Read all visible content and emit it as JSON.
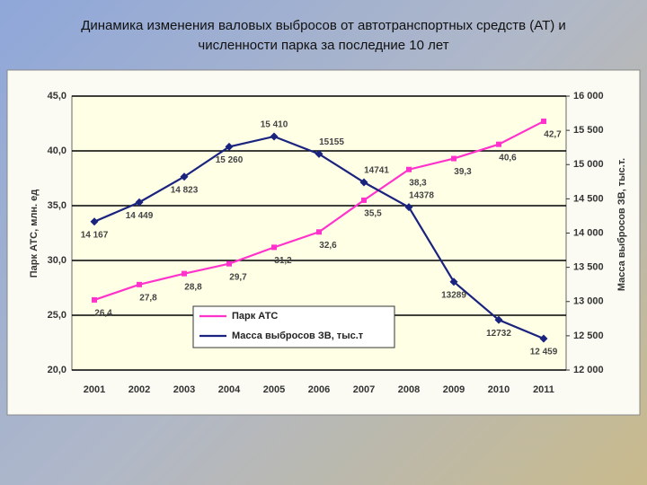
{
  "title_lines": [
    "Динамика изменения валовых выбросов от автотранспортных средств (АТ) и",
    "численности парка за последние 10 лет"
  ],
  "chart_data": {
    "type": "line",
    "categories": [
      "2001",
      "2002",
      "2003",
      "2004",
      "2005",
      "2006",
      "2007",
      "2008",
      "2009",
      "2010",
      "2011"
    ],
    "ylabel": "Парк АТС, млн. ед",
    "y2label": "Масса выбросов ЗВ, тыс.т.",
    "ylim": [
      20,
      45
    ],
    "yticks": [
      {
        "value": 20,
        "label": "20,0"
      },
      {
        "value": 25,
        "label": "25,0"
      },
      {
        "value": 30,
        "label": "30,0"
      },
      {
        "value": 35,
        "label": "35,0"
      },
      {
        "value": 40,
        "label": "40,0"
      },
      {
        "value": 45,
        "label": "45,0"
      }
    ],
    "y2lim": [
      12000,
      16000
    ],
    "y2ticks": [
      {
        "value": 12000,
        "label": "12 000"
      },
      {
        "value": 12500,
        "label": "12 500"
      },
      {
        "value": 13000,
        "label": "13 000"
      },
      {
        "value": 13500,
        "label": "13 500"
      },
      {
        "value": 14000,
        "label": "14 000"
      },
      {
        "value": 14500,
        "label": "14 500"
      },
      {
        "value": 15000,
        "label": "15 000"
      },
      {
        "value": 15500,
        "label": "15 500"
      },
      {
        "value": 16000,
        "label": "16 000"
      }
    ],
    "grid": true,
    "series": [
      {
        "name": "Парк АТС",
        "color": "#ff33cc",
        "marker": "square",
        "values": [
          26.4,
          27.8,
          28.8,
          29.7,
          31.2,
          32.6,
          35.5,
          38.3,
          39.3,
          40.6,
          42.7
        ],
        "value_labels": [
          "26,4",
          "27,8",
          "28,8",
          "29,7",
          "31,2",
          "32,6",
          "35,5",
          "38,3",
          "39,3",
          "40,6",
          "42,7"
        ]
      },
      {
        "name": "Масса выбросов ЗВ, тыс.т",
        "color": "#1a237e",
        "marker": "diamond",
        "axis": "y2",
        "values": [
          14167,
          14449,
          14823,
          15260,
          15410,
          15155,
          14741,
          14378,
          13289,
          12732,
          12459
        ],
        "value_labels": [
          "14 167",
          "14 449",
          "14 823",
          "15 260",
          "15 410",
          "15155",
          "14741",
          "14378",
          "13289",
          "12732",
          "12 459"
        ]
      }
    ]
  }
}
